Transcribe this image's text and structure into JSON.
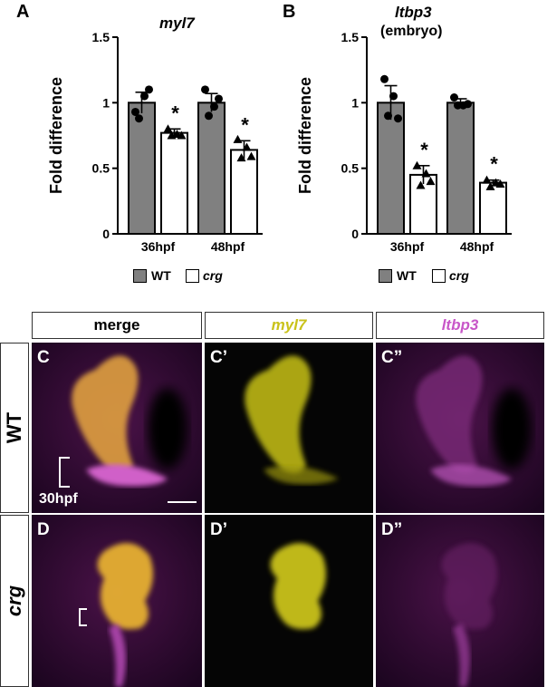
{
  "panel_a": {
    "letter": "A",
    "title": "myl7",
    "ylabel": "Fold difference",
    "yticks": [
      "0",
      "0.5",
      "1",
      "1.5"
    ],
    "groups": [
      "36hpf",
      "48hpf"
    ],
    "star": "*"
  },
  "panel_b": {
    "letter": "B",
    "title": "ltbp3",
    "subtitle": "(embryo)",
    "ylabel": "Fold difference",
    "yticks": [
      "0",
      "0.5",
      "1",
      "1.5"
    ],
    "groups": [
      "36hpf",
      "48hpf"
    ],
    "star": "*"
  },
  "legend": {
    "wt": "WT",
    "crg": "crg",
    "wt_color": "#808080",
    "crg_color": "#ffffff"
  },
  "micrographs": {
    "headers": [
      "merge",
      "myl7",
      "ltbp3"
    ],
    "header_colors": [
      "#000000",
      "#c9c21a",
      "#c857c8"
    ],
    "rows": [
      "WT",
      "crg"
    ],
    "letters": [
      "C",
      "C’",
      "C”",
      "D",
      "D’",
      "D”"
    ],
    "timepoint": "30hpf"
  },
  "chart_data": [
    {
      "type": "bar",
      "title": "myl7",
      "ylabel": "Fold difference",
      "categories": [
        "36hpf",
        "48hpf"
      ],
      "ylim": [
        0,
        1.5
      ],
      "series": [
        {
          "name": "WT",
          "values": [
            1.0,
            1.0
          ],
          "error": [
            0.08,
            0.07
          ],
          "points": [
            [
              0.93,
              1.05,
              1.1,
              0.88
            ],
            [
              1.1,
              0.97,
              1.03,
              0.9
            ]
          ]
        },
        {
          "name": "crg",
          "values": [
            0.77,
            0.64
          ],
          "error": [
            0.03,
            0.07
          ],
          "points": [
            [
              0.8,
              0.76,
              0.75,
              0.75
            ],
            [
              0.72,
              0.66,
              0.59,
              0.58
            ]
          ]
        }
      ],
      "significance": [
        false,
        true,
        false,
        true
      ]
    },
    {
      "type": "bar",
      "title": "ltbp3",
      "subtitle": "(embryo)",
      "ylabel": "Fold difference",
      "categories": [
        "36hpf",
        "48hpf"
      ],
      "ylim": [
        0,
        1.5
      ],
      "series": [
        {
          "name": "WT",
          "values": [
            1.0,
            1.0
          ],
          "error": [
            0.13,
            0.03
          ],
          "points": [
            [
              1.18,
              1.05,
              0.88,
              0.9
            ],
            [
              1.04,
              0.98,
              0.99,
              0.98
            ]
          ]
        },
        {
          "name": "crg",
          "values": [
            0.45,
            0.39
          ],
          "error": [
            0.07,
            0.02
          ],
          "points": [
            [
              0.52,
              0.46,
              0.4,
              0.37
            ],
            [
              0.41,
              0.39,
              0.38,
              0.36
            ]
          ]
        }
      ],
      "significance": [
        false,
        true,
        false,
        true
      ]
    }
  ]
}
